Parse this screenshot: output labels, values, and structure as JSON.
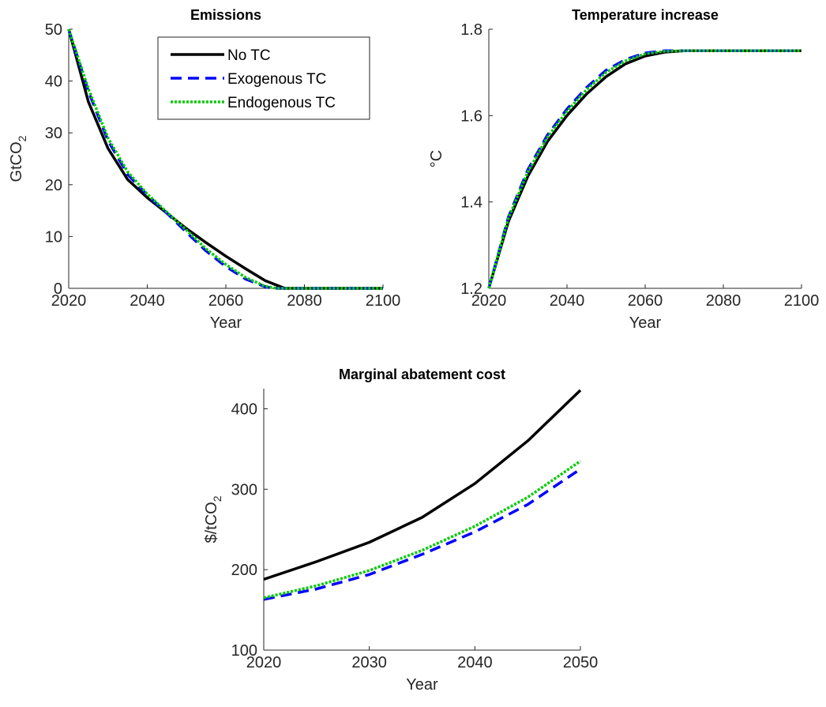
{
  "series_styles": [
    {
      "name": "No TC",
      "color": "#000000",
      "dash": ""
    },
    {
      "name": "Exogenous TC",
      "color": "#0000ff",
      "dash": "14,8"
    },
    {
      "name": "Endogenous TC",
      "color": "#00cc00",
      "dash": "3,2"
    }
  ],
  "chart_data": [
    {
      "type": "line",
      "title": "Emissions",
      "xlabel": "Year",
      "ylabel_main": "GtCO",
      "ylabel_sub": "2",
      "xlim": [
        2020,
        2100
      ],
      "ylim": [
        0,
        50
      ],
      "xticks": [
        2020,
        2040,
        2060,
        2080,
        2100
      ],
      "yticks": [
        0,
        10,
        20,
        30,
        40,
        50
      ],
      "legend": {
        "position": "top-right",
        "entries": [
          "No TC",
          "Exogenous TC",
          "Endogenous TC"
        ]
      },
      "series": [
        {
          "name": "No TC",
          "x": [
            2020,
            2025,
            2030,
            2035,
            2040,
            2045,
            2050,
            2055,
            2060,
            2065,
            2070,
            2075,
            2080,
            2090,
            2100
          ],
          "y": [
            50,
            36,
            27,
            21,
            17.5,
            14.5,
            11.5,
            8.8,
            6.2,
            3.8,
            1.5,
            0,
            0,
            0,
            0
          ]
        },
        {
          "name": "Exogenous TC",
          "x": [
            2020,
            2025,
            2030,
            2035,
            2040,
            2045,
            2050,
            2055,
            2060,
            2065,
            2070,
            2072,
            2080,
            2090,
            2100
          ],
          "y": [
            50,
            38,
            28.5,
            22,
            18,
            14.5,
            10.8,
            7.2,
            4.2,
            1.8,
            0.3,
            0,
            0,
            0,
            0
          ]
        },
        {
          "name": "Endogenous TC",
          "x": [
            2020,
            2025,
            2030,
            2035,
            2040,
            2045,
            2050,
            2055,
            2060,
            2065,
            2070,
            2073,
            2080,
            2090,
            2100
          ],
          "y": [
            50,
            38.5,
            29,
            22.5,
            18.2,
            14.7,
            11.2,
            7.6,
            4.6,
            2.1,
            0.4,
            0,
            0,
            0,
            0
          ]
        }
      ]
    },
    {
      "type": "line",
      "title": "Temperature increase",
      "xlabel": "Year",
      "ylabel_main": "°C",
      "ylabel_sub": "",
      "xlim": [
        2020,
        2100
      ],
      "ylim": [
        1.2,
        1.8
      ],
      "xticks": [
        2020,
        2040,
        2060,
        2080,
        2100
      ],
      "yticks": [
        1.2,
        1.4,
        1.6,
        1.8
      ],
      "series": [
        {
          "name": "No TC",
          "x": [
            2020,
            2025,
            2030,
            2035,
            2040,
            2045,
            2050,
            2055,
            2060,
            2065,
            2070,
            2075,
            2080,
            2090,
            2100
          ],
          "y": [
            1.2,
            1.355,
            1.46,
            1.54,
            1.6,
            1.65,
            1.69,
            1.72,
            1.738,
            1.747,
            1.75,
            1.75,
            1.75,
            1.75,
            1.75
          ]
        },
        {
          "name": "Exogenous TC",
          "x": [
            2020,
            2025,
            2030,
            2035,
            2040,
            2045,
            2050,
            2055,
            2060,
            2065,
            2070,
            2075,
            2080,
            2090,
            2100
          ],
          "y": [
            1.2,
            1.365,
            1.475,
            1.555,
            1.615,
            1.665,
            1.705,
            1.73,
            1.745,
            1.75,
            1.75,
            1.75,
            1.75,
            1.75,
            1.75
          ]
        },
        {
          "name": "Endogenous TC",
          "x": [
            2020,
            2025,
            2030,
            2035,
            2040,
            2045,
            2050,
            2055,
            2060,
            2065,
            2070,
            2075,
            2080,
            2090,
            2100
          ],
          "y": [
            1.2,
            1.362,
            1.47,
            1.55,
            1.61,
            1.66,
            1.7,
            1.727,
            1.743,
            1.749,
            1.75,
            1.75,
            1.75,
            1.75,
            1.75
          ]
        }
      ]
    },
    {
      "type": "line",
      "title": "Marginal abatement cost",
      "xlabel": "Year",
      "ylabel_main": "$/tCO",
      "ylabel_sub": "2",
      "xlim": [
        2020,
        2050
      ],
      "ylim": [
        100,
        425
      ],
      "xticks": [
        2020,
        2030,
        2040,
        2050
      ],
      "yticks": [
        100,
        200,
        300,
        400
      ],
      "series": [
        {
          "name": "No TC",
          "x": [
            2020,
            2025,
            2030,
            2035,
            2040,
            2045,
            2050
          ],
          "y": [
            188,
            210,
            234,
            265,
            307,
            360,
            423
          ]
        },
        {
          "name": "Exogenous TC",
          "x": [
            2020,
            2025,
            2030,
            2035,
            2040,
            2045,
            2050
          ],
          "y": [
            163,
            176,
            194,
            219,
            247,
            281,
            325
          ]
        },
        {
          "name": "Endogenous TC",
          "x": [
            2020,
            2025,
            2030,
            2035,
            2040,
            2045,
            2050
          ],
          "y": [
            165,
            180,
            199,
            224,
            254,
            290,
            335
          ]
        }
      ]
    }
  ]
}
